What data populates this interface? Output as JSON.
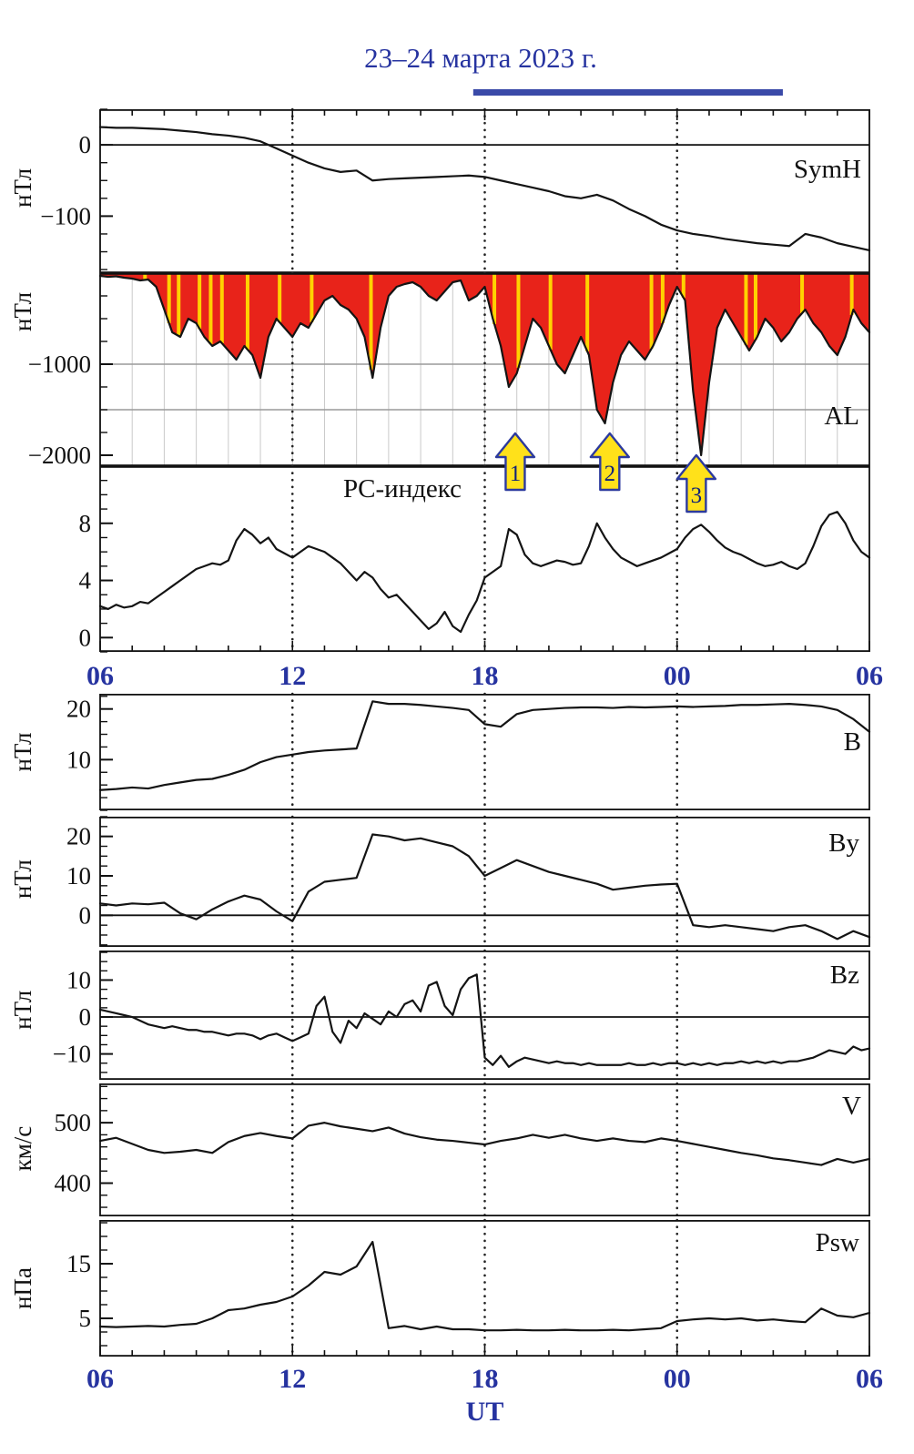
{
  "title": "23–24 марта 2023 г.",
  "axis": {
    "x_label": "UT",
    "x_ticks": [
      "06",
      "12",
      "18",
      "00",
      "06"
    ],
    "x_tick_hours": [
      6,
      12,
      18,
      24,
      30
    ],
    "x_range_hours": [
      6,
      30
    ],
    "vertical_dotted_hours": [
      12,
      18,
      24
    ]
  },
  "colors": {
    "axis_blue": "#2633a0",
    "event_bar": "#3a4aa8",
    "series_line": "#141414",
    "al_fill": "#e8231a",
    "stripe": "#ffd200",
    "arrow_fill": "#ffe11a",
    "arrow_stroke": "#2c3a9e"
  },
  "event_bar": {
    "start_hour": 17.64,
    "end_hour": 27.3
  },
  "arrows": [
    {
      "label": "1",
      "hour": 18.95
    },
    {
      "label": "2",
      "hour": 21.9
    },
    {
      "label": "3",
      "hour": 24.6
    }
  ],
  "chart_data": [
    {
      "name": "symh",
      "label": "SymH",
      "ylabel": "нТл",
      "type": "line",
      "ylim": [
        -180,
        50
      ],
      "ytick_minor": 25,
      "zero_line": true,
      "yticks": [
        {
          "value": 0,
          "label": "0"
        },
        {
          "value": -100,
          "label": "−100"
        }
      ],
      "x_start": 6,
      "x_step": 0.5,
      "values": [
        25,
        24,
        24,
        23,
        22,
        20,
        18,
        15,
        13,
        10,
        5,
        -5,
        -15,
        -25,
        -33,
        -38,
        -36,
        -50,
        -48,
        -47,
        -46,
        -45,
        -44,
        -43,
        -45,
        -50,
        -55,
        -60,
        -65,
        -72,
        -75,
        -70,
        -78,
        -90,
        -100,
        -112,
        -120,
        -125,
        -128,
        -132,
        -135,
        -138,
        -140,
        -142,
        -125,
        -130,
        -138,
        -143,
        -148
      ]
    },
    {
      "name": "al",
      "label": "AL",
      "ylabel": "нТл",
      "type": "area",
      "fill": "#e8231a",
      "ylim": [
        -2120,
        0
      ],
      "ytick_minor": 250,
      "hour_grid": true,
      "gray_hlines": [
        -1000,
        -1500
      ],
      "yticks": [
        {
          "value": -1000,
          "label": "−1000"
        },
        {
          "value": -2000,
          "label": "−2000"
        }
      ],
      "stripes": [
        7.4,
        8.15,
        8.45,
        9.1,
        9.45,
        9.8,
        10.6,
        11.6,
        12.6,
        14.45,
        18.3,
        19.05,
        20.05,
        21.2,
        23.2,
        23.55,
        24.2,
        26.15,
        26.45,
        27.9,
        29.45
      ],
      "x_start": 6,
      "x_step": 0.25,
      "values": [
        -30,
        -40,
        -35,
        -50,
        -60,
        -80,
        -70,
        -150,
        -400,
        -650,
        -700,
        -500,
        -550,
        -700,
        -800,
        -750,
        -850,
        -950,
        -800,
        -900,
        -1150,
        -700,
        -500,
        -600,
        -700,
        -550,
        -600,
        -450,
        -300,
        -250,
        -350,
        -400,
        -500,
        -700,
        -1150,
        -600,
        -250,
        -150,
        -120,
        -100,
        -150,
        -250,
        -300,
        -200,
        -100,
        -80,
        -300,
        -250,
        -150,
        -500,
        -800,
        -1250,
        -1100,
        -800,
        -500,
        -600,
        -800,
        -1000,
        -1100,
        -900,
        -700,
        -900,
        -1500,
        -1650,
        -1200,
        -900,
        -750,
        -850,
        -950,
        -800,
        -600,
        -350,
        -150,
        -300,
        -1300,
        -2000,
        -1200,
        -600,
        -400,
        -550,
        -700,
        -850,
        -700,
        -500,
        -600,
        -750,
        -650,
        -500,
        -400,
        -550,
        -650,
        -800,
        -900,
        -700,
        -400,
        -550,
        -650
      ]
    },
    {
      "name": "pc",
      "label": "",
      "inner_title": "PC-индекс",
      "type": "line",
      "ylim": [
        -1,
        12
      ],
      "ytick_minor": 1,
      "yticks": [
        {
          "value": 8,
          "label": "8"
        },
        {
          "value": 4,
          "label": "4"
        },
        {
          "value": 0,
          "label": "0"
        }
      ],
      "x_start": 6,
      "x_step": 0.25,
      "values": [
        2.2,
        2.0,
        2.3,
        2.1,
        2.2,
        2.5,
        2.4,
        2.8,
        3.2,
        3.6,
        4.0,
        4.4,
        4.8,
        5.0,
        5.2,
        5.1,
        5.4,
        6.8,
        7.6,
        7.2,
        6.6,
        7.0,
        6.2,
        5.9,
        5.6,
        6.0,
        6.4,
        6.2,
        6.0,
        5.6,
        5.2,
        4.6,
        4.0,
        4.6,
        4.2,
        3.4,
        2.8,
        3.0,
        2.4,
        1.8,
        1.2,
        0.6,
        1.0,
        1.8,
        0.8,
        0.4,
        1.6,
        2.6,
        4.2,
        4.6,
        5.0,
        7.6,
        7.2,
        5.8,
        5.2,
        5.0,
        5.2,
        5.4,
        5.3,
        5.1,
        5.2,
        6.4,
        8.0,
        7.0,
        6.2,
        5.6,
        5.3,
        5.0,
        5.2,
        5.4,
        5.6,
        5.9,
        6.2,
        7.0,
        7.6,
        7.9,
        7.4,
        6.8,
        6.3,
        6.0,
        5.8,
        5.5,
        5.2,
        5.0,
        5.1,
        5.3,
        5.0,
        4.8,
        5.2,
        6.4,
        7.8,
        8.6,
        8.8,
        8.0,
        6.8,
        6.0,
        5.6
      ]
    },
    {
      "name": "b",
      "label": "B",
      "ylabel": "нТл",
      "type": "line",
      "ylim": [
        0,
        23
      ],
      "ytick_minor": 2.5,
      "yticks": [
        {
          "value": 20,
          "label": "20"
        },
        {
          "value": 10,
          "label": "10"
        }
      ],
      "x_start": 6,
      "x_step": 0.5,
      "values": [
        4.0,
        4.2,
        4.5,
        4.3,
        5.0,
        5.5,
        6.0,
        6.2,
        7.0,
        8.0,
        9.5,
        10.5,
        11.0,
        11.5,
        11.8,
        12.0,
        12.2,
        21.5,
        21.0,
        21.0,
        20.8,
        20.5,
        20.2,
        19.8,
        17.0,
        16.5,
        19.0,
        19.8,
        20.0,
        20.2,
        20.3,
        20.3,
        20.2,
        20.4,
        20.3,
        20.4,
        20.5,
        20.4,
        20.5,
        20.6,
        20.8,
        20.8,
        20.9,
        21.0,
        20.8,
        20.5,
        19.8,
        18.0,
        15.5
      ]
    },
    {
      "name": "by",
      "label": "By",
      "ylabel": "нТл",
      "type": "line",
      "ylim": [
        -8,
        25
      ],
      "ytick_minor": 2.5,
      "zero_line": true,
      "yticks": [
        {
          "value": 20,
          "label": "20"
        },
        {
          "value": 10,
          "label": "10"
        },
        {
          "value": 0,
          "label": "0"
        }
      ],
      "x_start": 6,
      "x_step": 0.5,
      "values": [
        3.0,
        2.5,
        3.0,
        2.8,
        3.2,
        0.5,
        -1.0,
        1.5,
        3.5,
        5.0,
        4.0,
        1.0,
        -1.5,
        6.0,
        8.5,
        9.0,
        9.5,
        20.5,
        20.0,
        19.0,
        19.5,
        18.5,
        17.5,
        15.0,
        10.0,
        12.0,
        14.0,
        12.5,
        11.0,
        10.0,
        9.0,
        8.0,
        6.5,
        7.0,
        7.5,
        7.8,
        8.0,
        -2.5,
        -3.0,
        -2.5,
        -3.0,
        -3.5,
        -4.0,
        -3.0,
        -2.5,
        -4.0,
        -6.0,
        -4.0,
        -5.5
      ]
    },
    {
      "name": "bz",
      "label": "Bz",
      "ylabel": "нТл",
      "type": "line",
      "ylim": [
        -17,
        18
      ],
      "ytick_minor": 2.5,
      "zero_line": true,
      "yticks": [
        {
          "value": 10,
          "label": "10"
        },
        {
          "value": 0,
          "label": "0"
        },
        {
          "value": -10,
          "label": "−10"
        }
      ],
      "x_start": 6,
      "x_step": 0.25,
      "values": [
        2.0,
        1.5,
        1.0,
        0.5,
        0.0,
        -1.0,
        -2.0,
        -2.5,
        -3.0,
        -2.5,
        -3.0,
        -3.5,
        -3.5,
        -4.0,
        -4.0,
        -4.5,
        -5.0,
        -4.5,
        -4.5,
        -5.0,
        -6.0,
        -5.0,
        -4.5,
        -5.5,
        -6.5,
        -5.5,
        -4.5,
        3.0,
        5.5,
        -4.0,
        -7.0,
        -1.0,
        -3.0,
        1.0,
        -0.5,
        -2.0,
        1.5,
        0.0,
        3.5,
        4.5,
        1.5,
        8.5,
        9.5,
        3.0,
        0.5,
        7.5,
        10.5,
        11.5,
        -11.0,
        -13.0,
        -10.5,
        -13.5,
        -12.0,
        -11.0,
        -11.5,
        -12.0,
        -12.5,
        -12.0,
        -12.5,
        -12.5,
        -13.0,
        -12.5,
        -13.0,
        -13.0,
        -13.0,
        -13.0,
        -12.5,
        -13.0,
        -13.0,
        -12.5,
        -13.0,
        -12.5,
        -12.5,
        -13.0,
        -12.5,
        -13.0,
        -12.5,
        -13.0,
        -12.5,
        -12.5,
        -12.0,
        -12.5,
        -12.0,
        -12.5,
        -12.0,
        -12.5,
        -12.0,
        -12.0,
        -11.5,
        -11.0,
        -10.0,
        -9.0,
        -9.5,
        -10.0,
        -8.0,
        -9.0,
        -8.5
      ]
    },
    {
      "name": "v",
      "label": "V",
      "ylabel": "км/с",
      "type": "line",
      "ylim": [
        345,
        565
      ],
      "ytick_minor": 20,
      "yticks": [
        {
          "value": 500,
          "label": "500"
        },
        {
          "value": 400,
          "label": "400"
        }
      ],
      "x_start": 6,
      "x_step": 0.5,
      "values": [
        470,
        475,
        465,
        455,
        450,
        452,
        455,
        450,
        468,
        478,
        483,
        478,
        474,
        495,
        500,
        494,
        490,
        486,
        492,
        482,
        476,
        472,
        470,
        467,
        464,
        470,
        474,
        480,
        475,
        480,
        474,
        470,
        474,
        470,
        468,
        474,
        470,
        465,
        460,
        455,
        450,
        446,
        441,
        438,
        434,
        430,
        440,
        434,
        440
      ]
    },
    {
      "name": "psw",
      "label": "Psw",
      "ylabel": "нПа",
      "type": "line",
      "ylim": [
        -2,
        23
      ],
      "ytick_minor": 2.5,
      "yticks": [
        {
          "value": 15,
          "label": "15"
        },
        {
          "value": 5,
          "label": "5"
        }
      ],
      "x_start": 6,
      "x_step": 0.5,
      "values": [
        3.5,
        3.4,
        3.5,
        3.6,
        3.5,
        3.8,
        4.0,
        5.0,
        6.5,
        6.8,
        7.5,
        8.0,
        9.0,
        11.0,
        13.5,
        13.0,
        14.5,
        19.0,
        3.2,
        3.6,
        3.0,
        3.5,
        3.0,
        3.0,
        2.8,
        2.8,
        2.9,
        2.8,
        2.8,
        2.9,
        2.8,
        2.8,
        2.9,
        2.8,
        3.0,
        3.2,
        4.5,
        4.8,
        5.0,
        4.8,
        5.0,
        4.6,
        4.8,
        4.5,
        4.3,
        6.8,
        5.5,
        5.2,
        6.0
      ]
    }
  ]
}
